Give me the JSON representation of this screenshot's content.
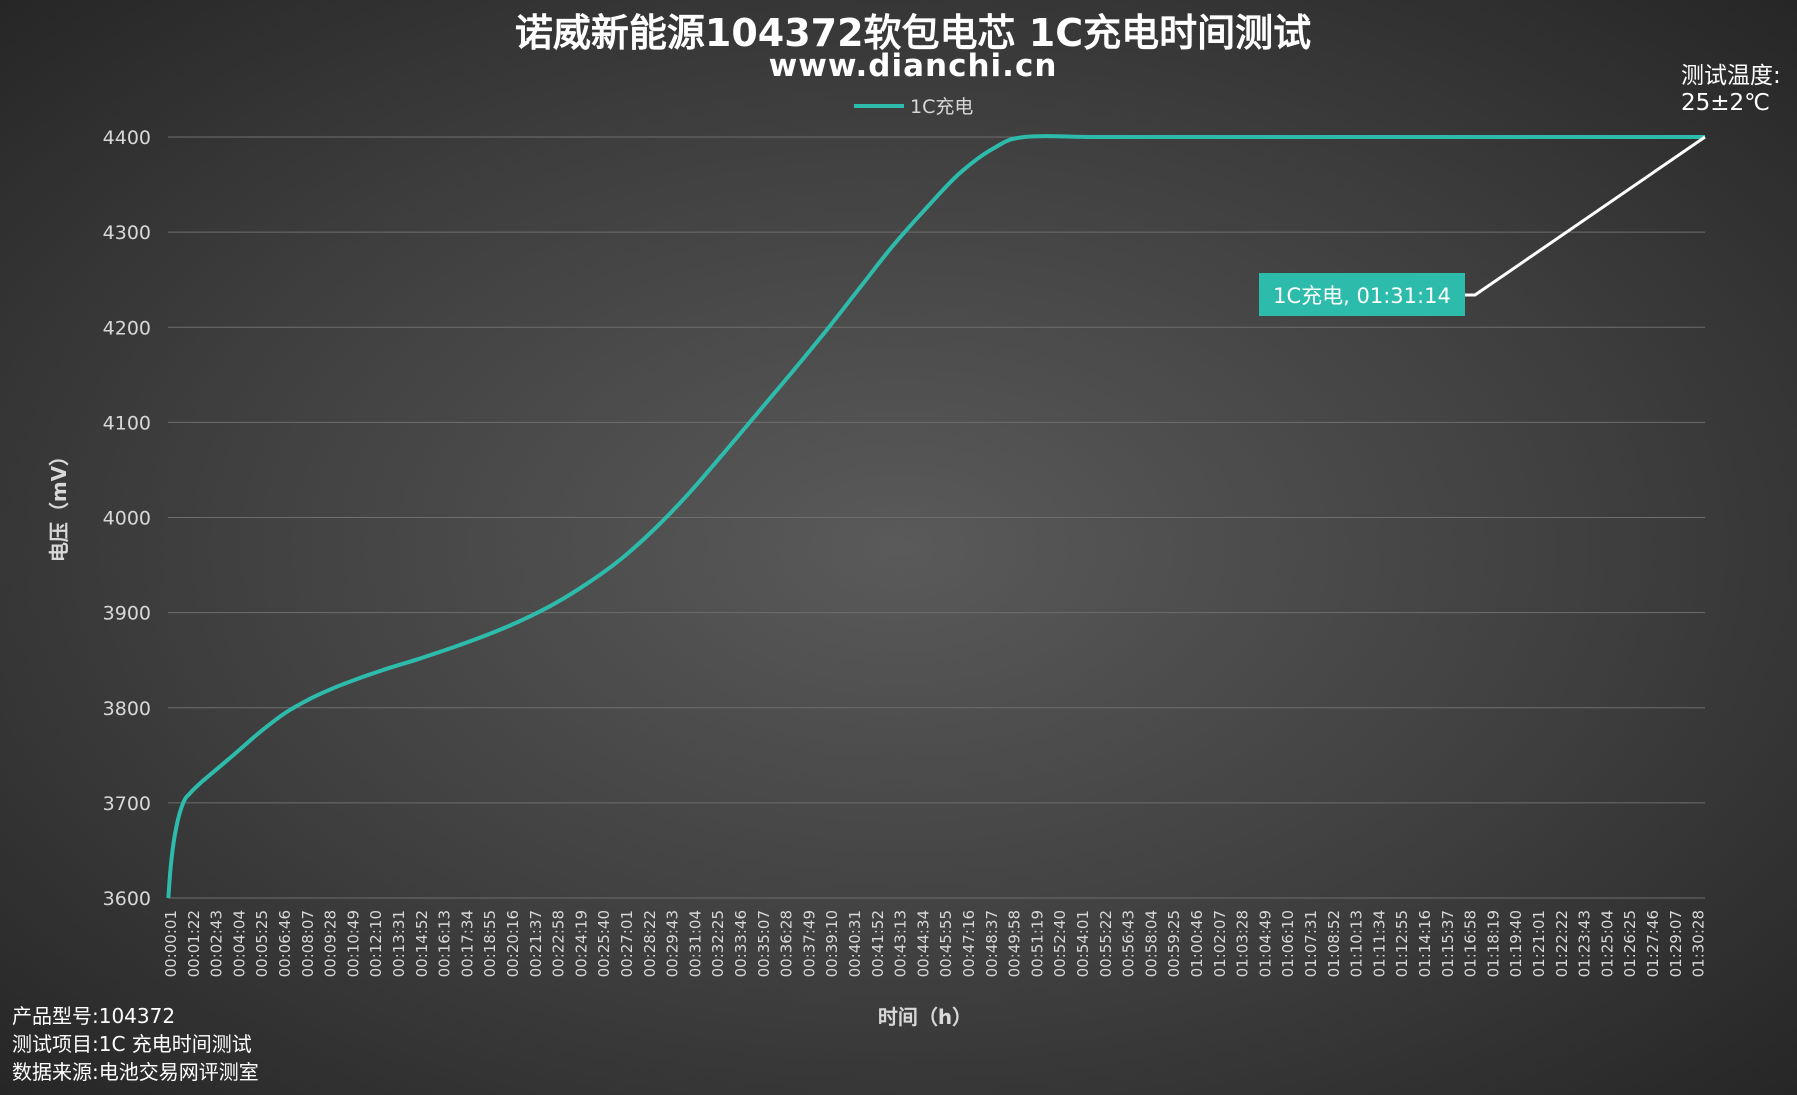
{
  "header": {
    "title": "诺威新能源104372软包电芯 1C充电时间测试",
    "subtitle": "www.dianchi.cn"
  },
  "test_temperature": {
    "label": "测试温度:",
    "value": "25±2℃"
  },
  "footer": {
    "model": "产品型号:104372",
    "item": "测试项目:1C 充电时间测试",
    "source": "数据来源:电池交易网评测室"
  },
  "chart_data": {
    "type": "line",
    "ylabel": "电压（mV）",
    "xlabel": "时间（h）",
    "ylim": [
      3600,
      4400
    ],
    "yticks": [
      3600,
      3700,
      3800,
      3900,
      4000,
      4100,
      4200,
      4300,
      4400
    ],
    "grid": true,
    "legend": "top-center",
    "xticks": [
      "00:00:01",
      "00:01:22",
      "00:02:43",
      "00:04:04",
      "00:05:25",
      "00:06:46",
      "00:08:07",
      "00:09:28",
      "00:10:49",
      "00:12:10",
      "00:13:31",
      "00:14:52",
      "00:16:13",
      "00:17:34",
      "00:18:55",
      "00:20:16",
      "00:21:37",
      "00:22:58",
      "00:24:19",
      "00:25:40",
      "00:27:01",
      "00:28:22",
      "00:29:43",
      "00:31:04",
      "00:32:25",
      "00:33:46",
      "00:35:07",
      "00:36:28",
      "00:37:49",
      "00:39:10",
      "00:40:31",
      "00:41:52",
      "00:43:13",
      "00:44:34",
      "00:45:55",
      "00:47:16",
      "00:48:37",
      "00:49:58",
      "00:51:19",
      "00:52:40",
      "00:54:01",
      "00:55:22",
      "00:56:43",
      "00:58:04",
      "00:59:25",
      "01:00:46",
      "01:02:07",
      "01:03:28",
      "01:04:49",
      "01:06:10",
      "01:07:31",
      "01:08:52",
      "01:10:13",
      "01:11:34",
      "01:12:55",
      "01:14:16",
      "01:15:37",
      "01:16:58",
      "01:18:19",
      "01:19:40",
      "01:21:01",
      "01:22:22",
      "01:23:43",
      "01:25:04",
      "01:26:25",
      "01:27:46",
      "01:29:07",
      "01:30:28"
    ],
    "series": [
      {
        "name": "1C充电",
        "color": "#2dbcac",
        "x_minutes": [
          0.02,
          0.2,
          0.5,
          0.9,
          1.3,
          2.0,
          3.0,
          4.0,
          5.5,
          7.0,
          8.5,
          10.0,
          11.5,
          13.0,
          15.0,
          17.0,
          19.0,
          21.0,
          23.0,
          25.0,
          27.0,
          29.0,
          31.0,
          33.0,
          35.0,
          37.0,
          39.0,
          41.0,
          43.0,
          45.0,
          47.0,
          49.0,
          50.83,
          55.0,
          60.0,
          65.0,
          70.0,
          75.0,
          80.0,
          85.0,
          90.0,
          91.23
        ],
        "y": [
          3600,
          3640,
          3675,
          3700,
          3710,
          3722,
          3737,
          3752,
          3775,
          3795,
          3810,
          3822,
          3832,
          3841,
          3852,
          3864,
          3877,
          3892,
          3910,
          3932,
          3958,
          3990,
          4027,
          4068,
          4110,
          4152,
          4195,
          4240,
          4285,
          4325,
          4362,
          4388,
          4400,
          4400,
          4400,
          4400,
          4400,
          4400,
          4400,
          4400,
          4400,
          4400
        ]
      }
    ],
    "annotation": {
      "text": "1C充电, 01:31:14",
      "at_minutes": 91.23,
      "value": 4400
    }
  }
}
